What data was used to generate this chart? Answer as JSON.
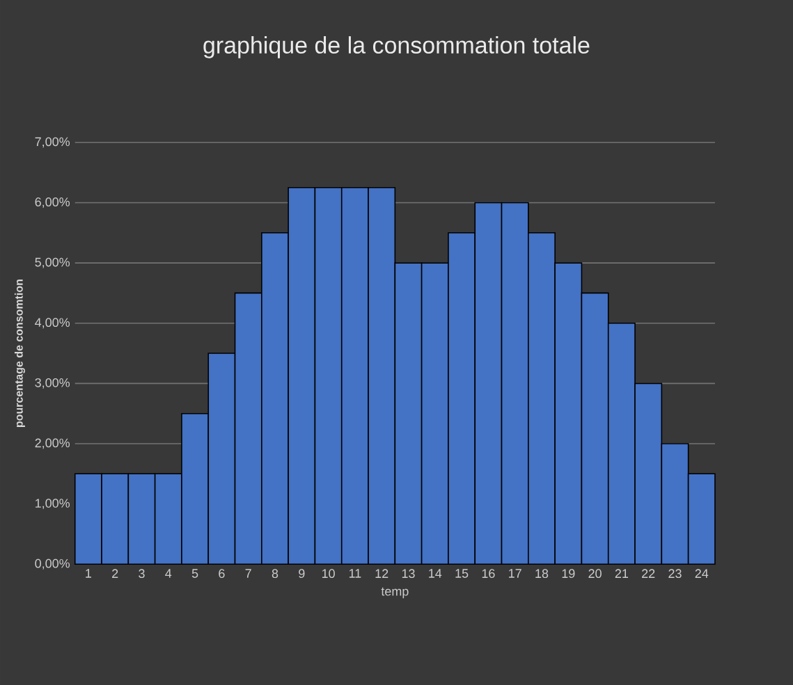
{
  "chart_data": {
    "type": "bar",
    "title": "graphique de la consommation totale",
    "xlabel": "temp",
    "ylabel": "pourcentage de consomtion",
    "categories": [
      "1",
      "2",
      "3",
      "4",
      "5",
      "6",
      "7",
      "8",
      "9",
      "10",
      "11",
      "12",
      "13",
      "14",
      "15",
      "16",
      "17",
      "18",
      "19",
      "20",
      "21",
      "22",
      "23",
      "24"
    ],
    "values": [
      1.5,
      1.5,
      1.5,
      1.5,
      2.5,
      3.5,
      4.5,
      5.5,
      6.25,
      6.25,
      6.25,
      6.25,
      5,
      5,
      5.5,
      6,
      6,
      5.5,
      5,
      4.5,
      4,
      3,
      2,
      1.5
    ],
    "color": "#4472c4",
    "ylim": [
      0,
      7
    ],
    "yticks": [
      {
        "value": 0,
        "label": "0,00%"
      },
      {
        "value": 1,
        "label": "1,00%"
      },
      {
        "value": 2,
        "label": "2,00%"
      },
      {
        "value": 3,
        "label": "3,00%"
      },
      {
        "value": 4,
        "label": "4,00%"
      },
      {
        "value": 5,
        "label": "5,00%"
      },
      {
        "value": 6,
        "label": "6,00%"
      },
      {
        "value": 7,
        "label": "7,00%"
      }
    ],
    "grid": "y"
  }
}
